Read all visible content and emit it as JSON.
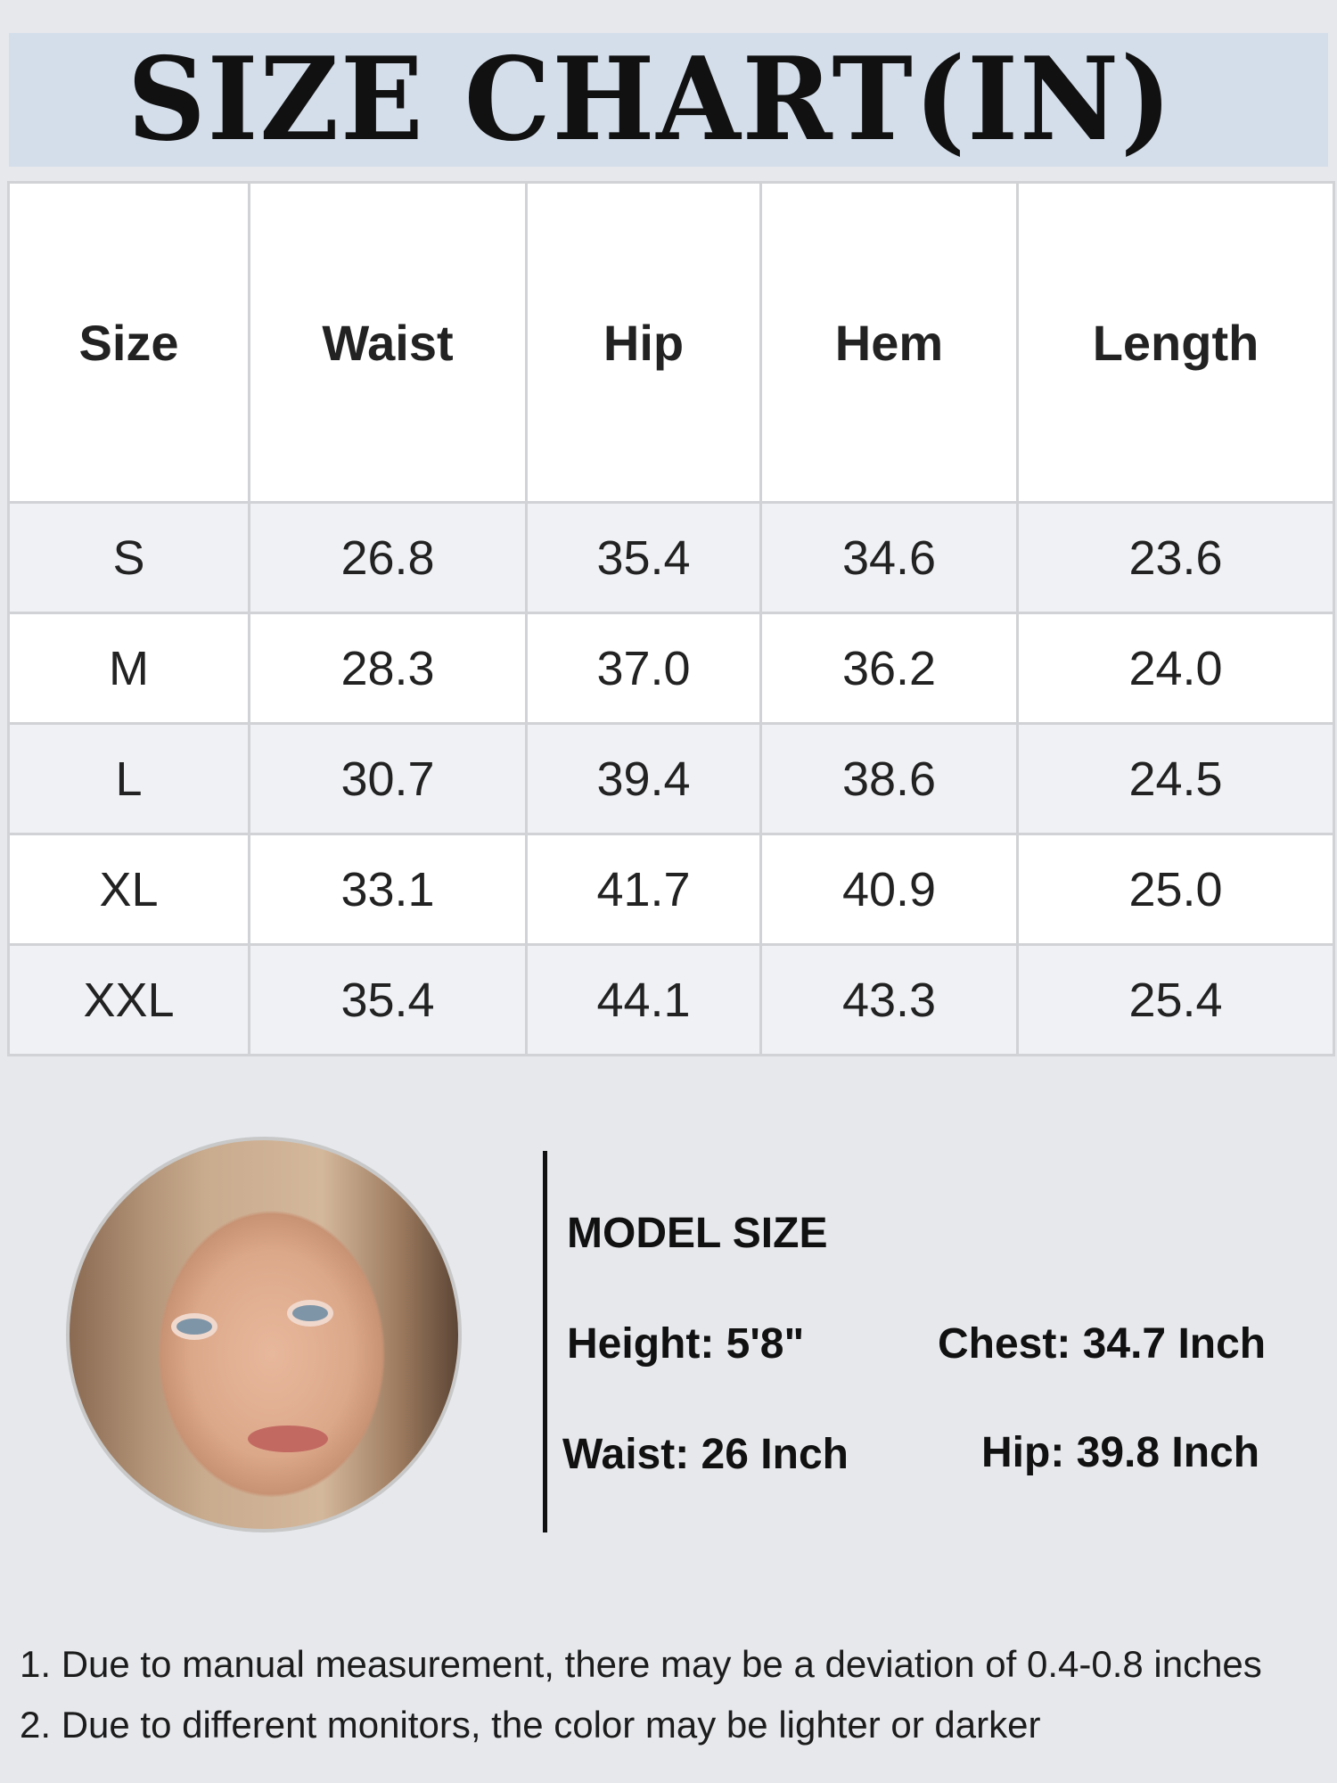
{
  "title": "SIZE CHART(IN)",
  "table": {
    "headers": [
      "Size",
      "Waist",
      "Hip",
      "Hem",
      "Length"
    ],
    "rows": [
      [
        "S",
        "26.8",
        "35.4",
        "34.6",
        "23.6"
      ],
      [
        "M",
        "28.3",
        "37.0",
        "36.2",
        "24.0"
      ],
      [
        "L",
        "30.7",
        "39.4",
        "38.6",
        "24.5"
      ],
      [
        "XL",
        "33.1",
        "41.7",
        "40.9",
        "25.0"
      ],
      [
        "XXL",
        "35.4",
        "44.1",
        "43.3",
        "25.4"
      ]
    ]
  },
  "model": {
    "heading": "MODEL SIZE",
    "height": "Height: 5'8\"",
    "chest": "Chest: 34.7 Inch",
    "waist": "Waist: 26 Inch",
    "hip": "Hip: 39.8 Inch"
  },
  "notes": [
    "1. Due to manual measurement, there may be a deviation of 0.4-0.8 inches",
    "2. Due to different monitors, the color may be lighter or darker"
  ],
  "colors": {
    "background": "#e6e8ec",
    "title_band": "#d4deeb",
    "alt_row": "#eff1f4"
  }
}
